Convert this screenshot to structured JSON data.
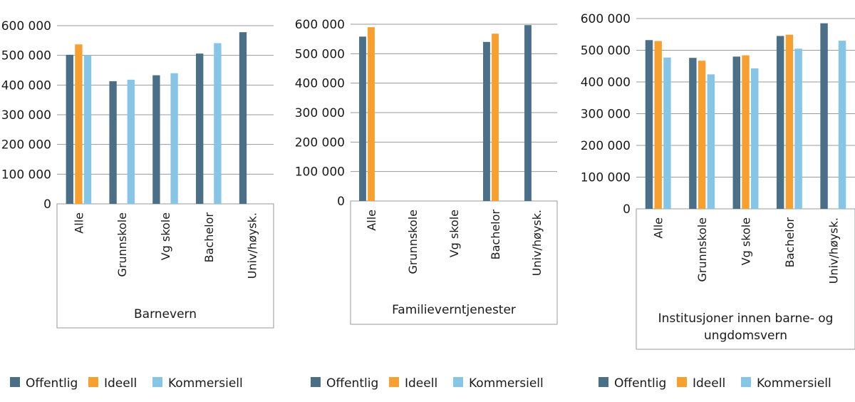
{
  "colors": {
    "Offentlig": "#4a6f86",
    "Ideell": "#f7a030",
    "Kommersiell": "#87c5e6"
  },
  "chart_data": [
    {
      "type": "bar",
      "group_label": "Barnevern",
      "categories": [
        "Alle",
        "Grunnskole",
        "Vg skole",
        "Bachelor",
        "Univ/høysk."
      ],
      "ylim": [
        0,
        600000
      ],
      "yticks": [
        "0",
        "100 000",
        "200 000",
        "300 000",
        "400 000",
        "500 000",
        "600 000"
      ],
      "grid": true,
      "legend": "bottom",
      "series": [
        {
          "name": "Offentlig",
          "values": [
            502000,
            413000,
            433000,
            506000,
            578000
          ]
        },
        {
          "name": "Ideell",
          "values": [
            537000,
            null,
            null,
            null,
            null
          ]
        },
        {
          "name": "Kommersiell",
          "values": [
            500000,
            418000,
            440000,
            541000,
            null
          ]
        }
      ]
    },
    {
      "type": "bar",
      "group_label": "Familieverntjenester",
      "categories": [
        "Alle",
        "Grunnskole",
        "Vg skole",
        "Bachelor",
        "Univ/høysk."
      ],
      "ylim": [
        0,
        600000
      ],
      "yticks": [
        "0",
        "100 000",
        "200 000",
        "300 000",
        "400 000",
        "500 000",
        "600 000"
      ],
      "grid": true,
      "legend": "bottom",
      "series": [
        {
          "name": "Offentlig",
          "values": [
            558000,
            null,
            null,
            540000,
            597000
          ]
        },
        {
          "name": "Ideell",
          "values": [
            590000,
            null,
            null,
            568000,
            null
          ]
        },
        {
          "name": "Kommersiell",
          "values": [
            null,
            null,
            null,
            null,
            null
          ]
        }
      ]
    },
    {
      "type": "bar",
      "group_label": "Institusjoner innen barne- og ungdomsvern",
      "group_label_lines": [
        "Institusjoner innen barne- og",
        "ungdomsvern"
      ],
      "categories": [
        "Alle",
        "Grunnskole",
        "Vg skole",
        "Bachelor",
        "Univ/høysk."
      ],
      "ylim": [
        0,
        600000
      ],
      "yticks": [
        "0",
        "100 000",
        "200 000",
        "300 000",
        "400 000",
        "500 000",
        "600 000"
      ],
      "grid": true,
      "legend": "bottom",
      "series": [
        {
          "name": "Offentlig",
          "values": [
            532000,
            476000,
            480000,
            545000,
            585000
          ]
        },
        {
          "name": "Ideell",
          "values": [
            529000,
            467000,
            484000,
            549000,
            null
          ]
        },
        {
          "name": "Kommersiell",
          "values": [
            477000,
            424000,
            443000,
            505000,
            530000
          ]
        }
      ]
    }
  ]
}
